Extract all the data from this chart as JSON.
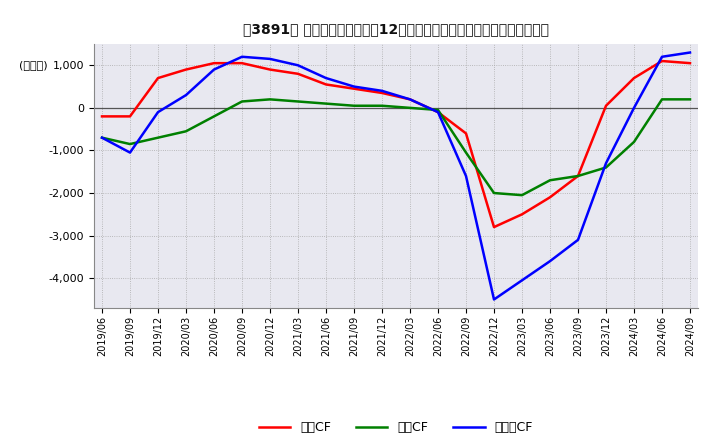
{
  "title": "［3891］ キャッシュフローの12か月移動合計の対前年同期増減額の推移",
  "ylabel": "(百万円)",
  "ylim": [
    -4700,
    1500
  ],
  "yticks": [
    1000,
    0,
    -1000,
    -2000,
    -3000,
    -4000
  ],
  "legend_labels": [
    "営業CF",
    "投資CF",
    "フリーCF"
  ],
  "line_colors": [
    "#ff0000",
    "#008000",
    "#0000ff"
  ],
  "background_color": "#ffffff",
  "plot_bg_color": "#e8e8f0",
  "grid_color": "#ffffff",
  "dates": [
    "2019/06",
    "2019/09",
    "2019/12",
    "2020/03",
    "2020/06",
    "2020/09",
    "2020/12",
    "2021/03",
    "2021/06",
    "2021/09",
    "2021/12",
    "2022/03",
    "2022/06",
    "2022/09",
    "2022/12",
    "2023/03",
    "2023/06",
    "2023/09",
    "2023/12",
    "2024/03",
    "2024/06",
    "2024/09"
  ],
  "operating_cf": [
    -200,
    -200,
    700,
    900,
    1050,
    1050,
    900,
    800,
    550,
    450,
    350,
    200,
    -100,
    -600,
    -2800,
    -2500,
    -2100,
    -1600,
    50,
    700,
    1100,
    1050
  ],
  "investing_cf": [
    -700,
    -850,
    -700,
    -550,
    -200,
    150,
    200,
    150,
    100,
    50,
    50,
    0,
    -50,
    -1050,
    -2000,
    -2050,
    -1700,
    -1600,
    -1400,
    -800,
    200,
    200
  ],
  "free_cf": [
    -700,
    -1050,
    -100,
    300,
    900,
    1200,
    1150,
    1000,
    700,
    500,
    400,
    200,
    -100,
    -1600,
    -4500,
    -4050,
    -3600,
    -3100,
    -1300,
    0,
    1200,
    1300
  ]
}
